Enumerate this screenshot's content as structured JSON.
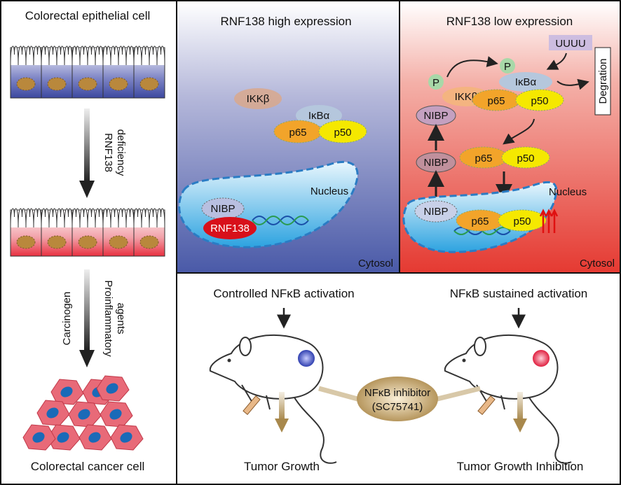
{
  "left": {
    "top_label": "Colorectal epithelial cell",
    "step1": [
      "RNF138",
      "deficiency"
    ],
    "step2": [
      "Carcinogen",
      "Proinflammatory",
      "agents"
    ],
    "bottom_label": "Colorectal cancer cell"
  },
  "high": {
    "title": "RNF138 high expression",
    "ikkb": "IKKβ",
    "ikba": "IκBα",
    "p65": "p65",
    "p50": "p50",
    "nucleus": "Nucleus",
    "nibp": "NIBP",
    "rnf138": "RNF138",
    "cytosol": "Cytosol"
  },
  "low": {
    "title": "RNF138 low expression",
    "ub": "UUUU",
    "p": "P",
    "ikkb": "IKKβ",
    "ikba": "IκBα",
    "p65": "p65",
    "p50": "p50",
    "degradation": "Degration",
    "nibp": "NIBP",
    "nucleus": "Nucleus",
    "cytosol": "Cytosol"
  },
  "bottom": {
    "left_title": "Controlled NFκB activation",
    "right_title": "NFκB sustained activation",
    "inhibitor": [
      "NFκB inhibitor",
      "(SC75741)"
    ],
    "left_outcome": "Tumor Growth",
    "right_outcome": "Tumor Growth Inhibition"
  },
  "colors": {
    "blue_panel": "#4a5aa8",
    "red_panel": "#e53a32",
    "p65": "#f2a42a",
    "p50": "#f5e800",
    "nucleus": "#5ab8ea",
    "inhibitor": "#a88444"
  }
}
